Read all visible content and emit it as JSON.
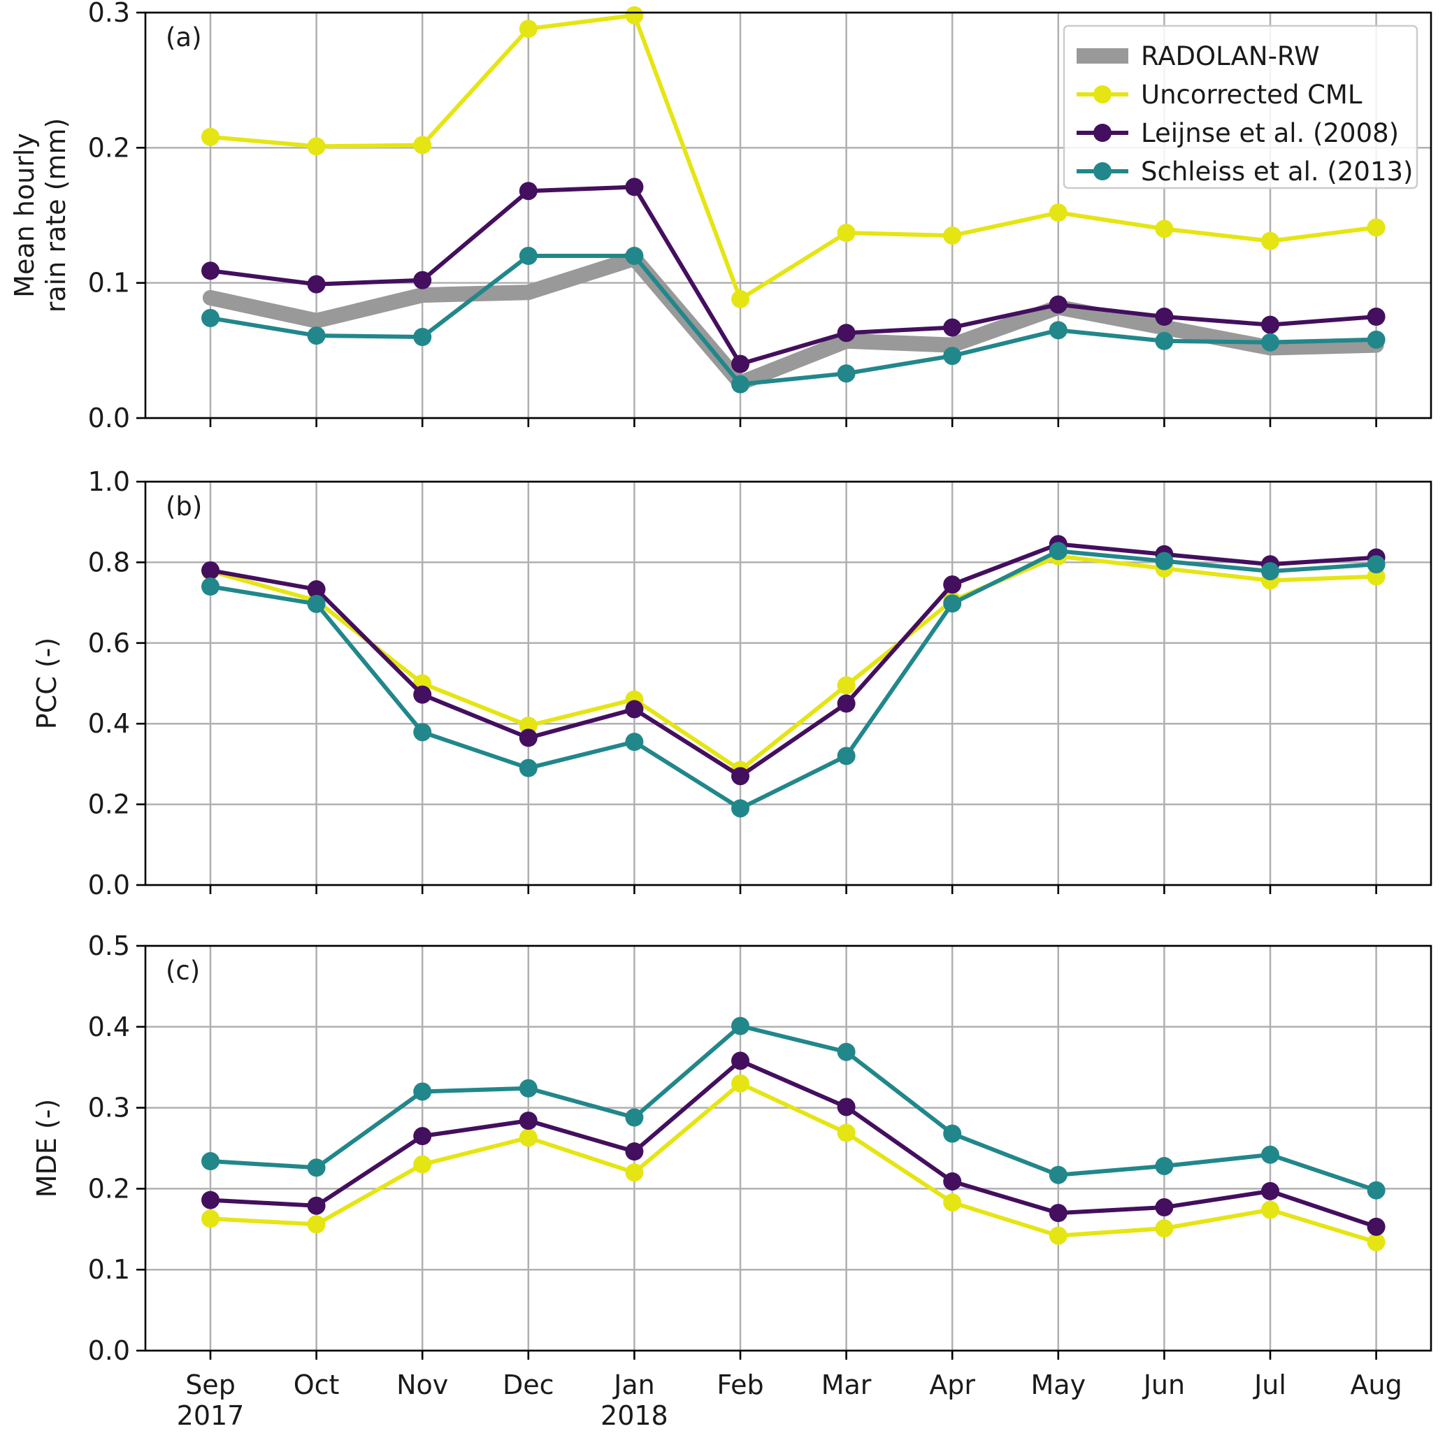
{
  "chart_data": [
    {
      "type": "line",
      "panel_label": "(a)",
      "ylabel_lines": [
        "Mean hourly",
        "rain rate (mm)"
      ],
      "ylim": [
        0,
        0.3
      ],
      "yticks": [
        "0.0",
        "0.1",
        "0.2",
        "0.3"
      ],
      "categories": [
        "Sep",
        "Oct",
        "Nov",
        "Dec",
        "Jan",
        "Feb",
        "Mar",
        "Apr",
        "May",
        "Jun",
        "Jul",
        "Aug"
      ],
      "category_sublabels": [
        "2017",
        "",
        "",
        "",
        "2018",
        "",
        "",
        "",
        "",
        "",
        "",
        ""
      ],
      "grid": true,
      "legend_position": "top-right",
      "series": [
        {
          "name": "RADOLAN-RW",
          "color": "#999999",
          "style": "thick",
          "values": [
            0.089,
            0.072,
            0.091,
            0.093,
            0.118,
            0.026,
            0.057,
            0.054,
            0.082,
            0.067,
            0.052,
            0.054
          ]
        },
        {
          "name": "Uncorrected CML",
          "color": "#e5e514",
          "style": "normal",
          "values": [
            0.208,
            0.201,
            0.202,
            0.288,
            0.298,
            0.088,
            0.137,
            0.135,
            0.152,
            0.14,
            0.131,
            0.141
          ]
        },
        {
          "name": "Leijnse et al. (2008)",
          "color": "#440f5e",
          "style": "normal",
          "values": [
            0.109,
            0.099,
            0.102,
            0.168,
            0.171,
            0.04,
            0.063,
            0.067,
            0.084,
            0.075,
            0.069,
            0.075
          ]
        },
        {
          "name": "Schleiss et al. (2013)",
          "color": "#21878b",
          "style": "normal",
          "values": [
            0.074,
            0.061,
            0.06,
            0.12,
            0.12,
            0.025,
            0.033,
            0.046,
            0.065,
            0.057,
            0.056,
            0.058
          ]
        }
      ]
    },
    {
      "type": "line",
      "panel_label": "(b)",
      "ylabel_lines": [
        "PCC (-)"
      ],
      "ylim": [
        0,
        1.0
      ],
      "yticks": [
        "0.0",
        "0.2",
        "0.4",
        "0.6",
        "0.8",
        "1.0"
      ],
      "categories": [
        "Sep",
        "Oct",
        "Nov",
        "Dec",
        "Jan",
        "Feb",
        "Mar",
        "Apr",
        "May",
        "Jun",
        "Jul",
        "Aug"
      ],
      "grid": true,
      "series": [
        {
          "name": "Uncorrected CML",
          "color": "#e5e514",
          "style": "normal",
          "values": [
            0.778,
            0.705,
            0.5,
            0.395,
            0.46,
            0.285,
            0.495,
            0.705,
            0.815,
            0.785,
            0.755,
            0.765
          ]
        },
        {
          "name": "Leijnse et al. (2008)",
          "color": "#440f5e",
          "style": "normal",
          "values": [
            0.78,
            0.733,
            0.472,
            0.365,
            0.436,
            0.27,
            0.45,
            0.745,
            0.845,
            0.82,
            0.795,
            0.812
          ]
        },
        {
          "name": "Schleiss et al. (2013)",
          "color": "#21878b",
          "style": "normal",
          "values": [
            0.74,
            0.697,
            0.379,
            0.29,
            0.355,
            0.19,
            0.32,
            0.698,
            0.828,
            0.803,
            0.778,
            0.795
          ]
        }
      ]
    },
    {
      "type": "line",
      "panel_label": "(c)",
      "ylabel_lines": [
        "MDE (-)"
      ],
      "ylim": [
        0,
        0.5
      ],
      "yticks": [
        "0.0",
        "0.1",
        "0.2",
        "0.3",
        "0.4",
        "0.5"
      ],
      "categories": [
        "Sep",
        "Oct",
        "Nov",
        "Dec",
        "Jan",
        "Feb",
        "Mar",
        "Apr",
        "May",
        "Jun",
        "Jul",
        "Aug"
      ],
      "category_sublabels": [
        "2017",
        "",
        "",
        "",
        "2018",
        "",
        "",
        "",
        "",
        "",
        "",
        ""
      ],
      "grid": true,
      "series": [
        {
          "name": "Uncorrected CML",
          "color": "#e5e514",
          "style": "normal",
          "values": [
            0.163,
            0.156,
            0.23,
            0.263,
            0.22,
            0.33,
            0.269,
            0.183,
            0.142,
            0.151,
            0.174,
            0.134
          ]
        },
        {
          "name": "Leijnse et al. (2008)",
          "color": "#440f5e",
          "style": "normal",
          "values": [
            0.186,
            0.179,
            0.265,
            0.284,
            0.246,
            0.358,
            0.301,
            0.209,
            0.17,
            0.177,
            0.197,
            0.153
          ]
        },
        {
          "name": "Schleiss et al. (2013)",
          "color": "#21878b",
          "style": "normal",
          "values": [
            0.234,
            0.226,
            0.32,
            0.324,
            0.288,
            0.401,
            0.369,
            0.268,
            0.217,
            0.228,
            0.242,
            0.198
          ]
        }
      ]
    }
  ]
}
